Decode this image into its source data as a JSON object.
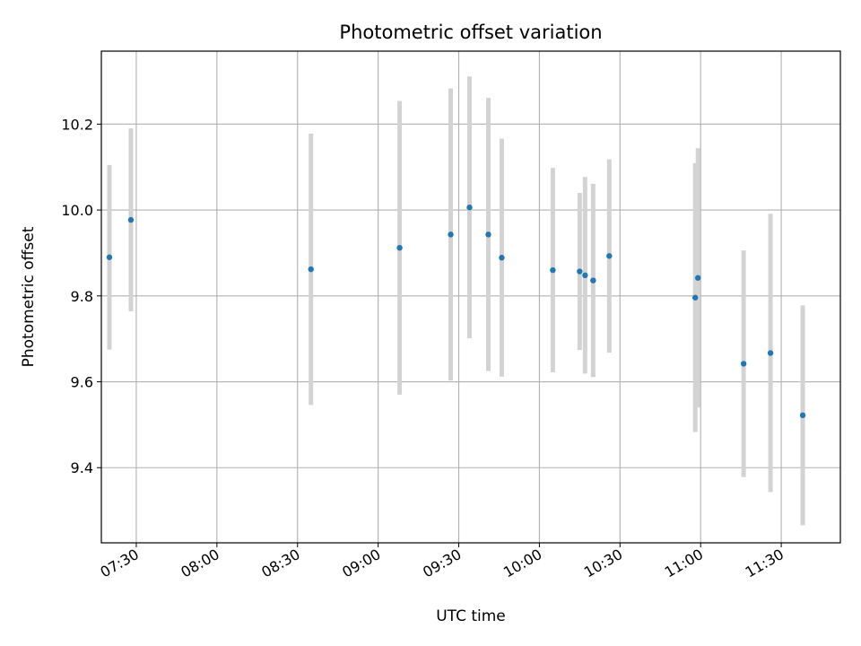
{
  "chart_data": {
    "type": "scatter",
    "title": "Photometric offset variation",
    "xlabel": "UTC time",
    "ylabel": "Photometric offset",
    "x_tick_labels": [
      "07:30",
      "08:00",
      "08:30",
      "09:00",
      "09:30",
      "10:00",
      "10:30",
      "11:00",
      "11:30"
    ],
    "y_tick_labels": [
      "9.4",
      "9.6",
      "9.8",
      "10.0",
      "10.2"
    ],
    "xlim": [
      "07:17",
      "11:52"
    ],
    "ylim": [
      9.225,
      10.37
    ],
    "grid": true,
    "colors": {
      "point": "#1f77b4",
      "errorbar": "#d3d3d3",
      "grid": "#b0b0b0"
    },
    "series": [
      {
        "points": [
          {
            "x": "07:20",
            "y": 9.89,
            "err": 0.215
          },
          {
            "x": "07:28",
            "y": 9.977,
            "err": 0.213
          },
          {
            "x": "08:35",
            "y": 9.862,
            "err": 0.316
          },
          {
            "x": "09:08",
            "y": 9.912,
            "err": 0.342
          },
          {
            "x": "09:27",
            "y": 9.943,
            "err": 0.34
          },
          {
            "x": "09:34",
            "y": 10.006,
            "err": 0.305
          },
          {
            "x": "09:41",
            "y": 9.943,
            "err": 0.318
          },
          {
            "x": "09:46",
            "y": 9.889,
            "err": 0.277
          },
          {
            "x": "10:05",
            "y": 9.86,
            "err": 0.238
          },
          {
            "x": "10:15",
            "y": 9.857,
            "err": 0.183
          },
          {
            "x": "10:17",
            "y": 9.848,
            "err": 0.229
          },
          {
            "x": "10:20",
            "y": 9.836,
            "err": 0.225
          },
          {
            "x": "10:26",
            "y": 9.893,
            "err": 0.225
          },
          {
            "x": "10:58",
            "y": 9.796,
            "err": 0.313
          },
          {
            "x": "10:59",
            "y": 9.842,
            "err": 0.302
          },
          {
            "x": "11:16",
            "y": 9.642,
            "err": 0.264
          },
          {
            "x": "11:26",
            "y": 9.667,
            "err": 0.324
          },
          {
            "x": "11:38",
            "y": 9.522,
            "err": 0.256
          }
        ]
      }
    ]
  }
}
